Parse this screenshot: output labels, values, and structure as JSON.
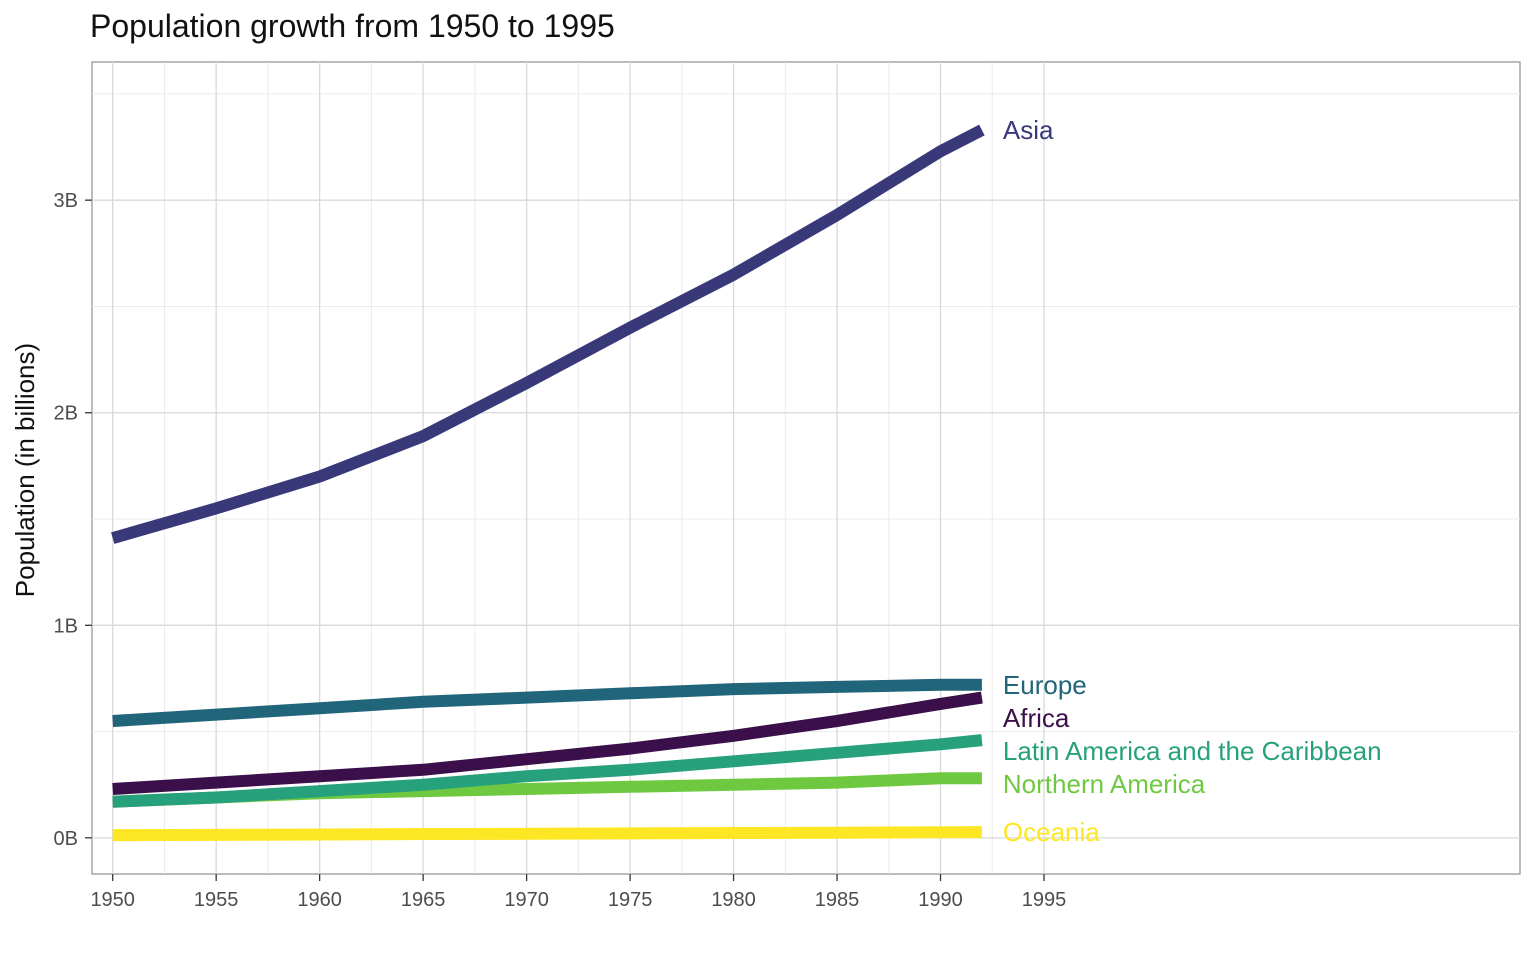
{
  "chart_data": {
    "type": "line",
    "title": "Population growth from 1950 to 1995",
    "xlabel": "",
    "ylabel": "Population (in billions)",
    "xlim": [
      1949,
      2018
    ],
    "ylim": [
      -0.17,
      3.65
    ],
    "x_ticks": [
      1950,
      1955,
      1960,
      1965,
      1970,
      1975,
      1980,
      1985,
      1990,
      1995
    ],
    "x_tick_labels": [
      "1950",
      "1955",
      "1960",
      "1965",
      "1970",
      "1975",
      "1980",
      "1985",
      "1990",
      "1995"
    ],
    "y_ticks": [
      0,
      1,
      2,
      3
    ],
    "y_tick_labels": [
      "0B",
      "1B",
      "2B",
      "3B"
    ],
    "grid": true,
    "legend": "direct labels at line ends",
    "x": [
      1950,
      1955,
      1960,
      1965,
      1970,
      1975,
      1980,
      1985,
      1990,
      1992
    ],
    "series": [
      {
        "name": "Asia",
        "color": "#39397a",
        "values": [
          1.41,
          1.55,
          1.7,
          1.89,
          2.14,
          2.4,
          2.65,
          2.93,
          3.23,
          3.33
        ]
      },
      {
        "name": "Europe",
        "color": "#21657b",
        "values": [
          0.55,
          0.58,
          0.61,
          0.64,
          0.66,
          0.68,
          0.7,
          0.71,
          0.72,
          0.72
        ]
      },
      {
        "name": "Africa",
        "color": "#3a0f4a",
        "values": [
          0.23,
          0.26,
          0.29,
          0.32,
          0.37,
          0.42,
          0.48,
          0.55,
          0.63,
          0.66
        ]
      },
      {
        "name": "Latin America and the Caribbean",
        "color": "#27a07c",
        "values": [
          0.17,
          0.19,
          0.22,
          0.25,
          0.29,
          0.32,
          0.36,
          0.4,
          0.44,
          0.46
        ]
      },
      {
        "name": "Northern America",
        "color": "#6ec941",
        "values": [
          0.17,
          0.19,
          0.21,
          0.22,
          0.23,
          0.24,
          0.25,
          0.26,
          0.28,
          0.28
        ]
      },
      {
        "name": "Oceania",
        "color": "#fde725",
        "values": [
          0.013,
          0.014,
          0.016,
          0.018,
          0.019,
          0.021,
          0.023,
          0.024,
          0.026,
          0.027
        ]
      }
    ]
  }
}
